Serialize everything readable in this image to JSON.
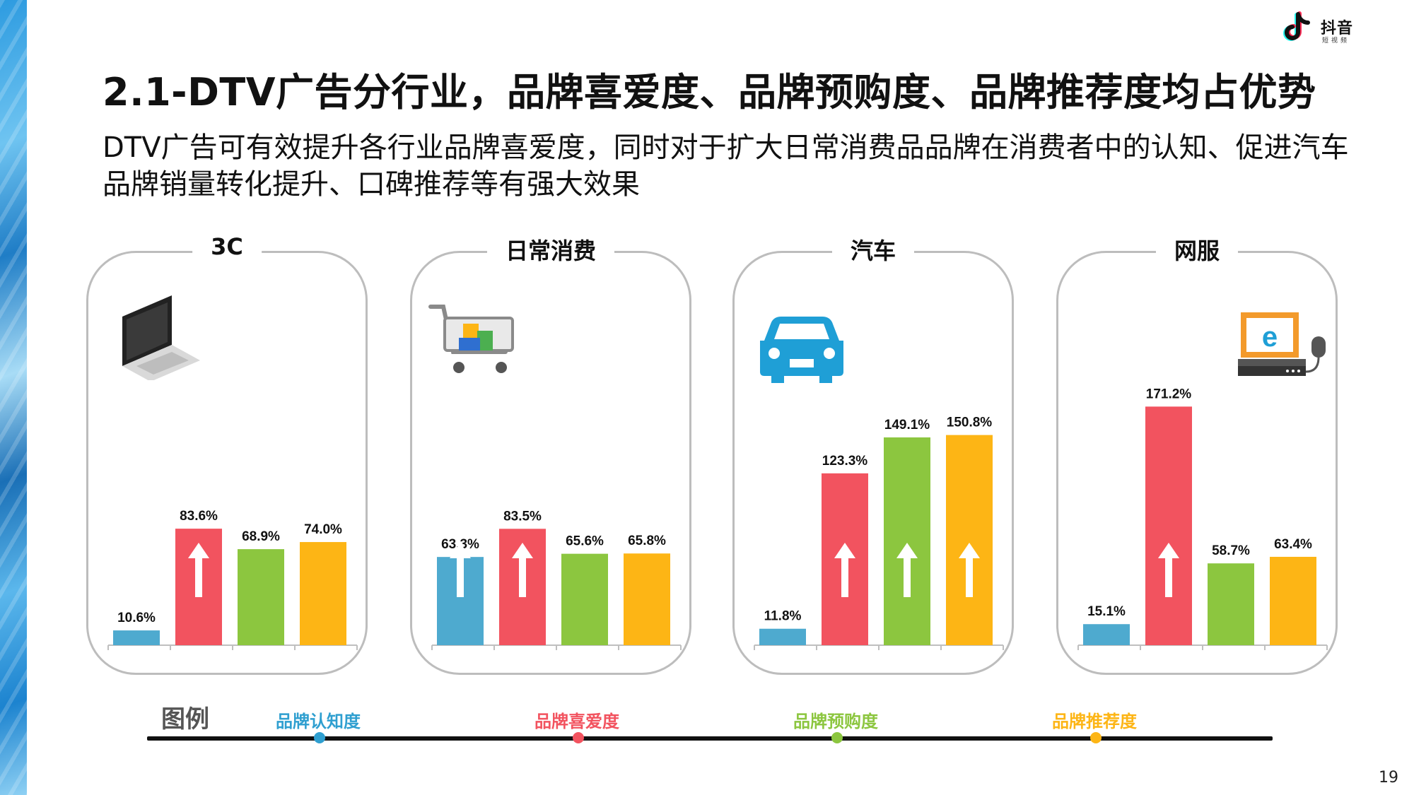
{
  "header": {
    "logo_text": "抖音",
    "logo_sub": "短视频",
    "title": "2.1-DTV广告分行业，品牌喜爱度、品牌预购度、品牌推荐度均占优势",
    "subtitle": "DTV广告可有效提升各行业品牌喜爱度，同时对于扩大日常消费品品牌在消费者中的认知、促进汽车品牌销量转化提升、口碑推荐等有强大效果"
  },
  "colors": {
    "awareness": "#4eaacf",
    "favorability": "#f2535f",
    "purchase_intent": "#8cc63f",
    "recommendation": "#fdb515"
  },
  "chart_data": [
    {
      "type": "bar",
      "title": "3C",
      "icon": "laptop-icon",
      "categories": [
        "品牌认知度",
        "品牌喜爱度",
        "品牌预购度",
        "品牌推荐度"
      ],
      "values": [
        10.6,
        83.6,
        68.9,
        74.0
      ],
      "labels": [
        "10.6%",
        "83.6%",
        "68.9%",
        "74.0%"
      ],
      "arrows": [
        false,
        true,
        false,
        false
      ],
      "ylim": [
        0,
        180
      ]
    },
    {
      "type": "bar",
      "title": "日常消费",
      "icon": "shopping-cart-icon",
      "categories": [
        "品牌认知度",
        "品牌喜爱度",
        "品牌预购度",
        "品牌推荐度"
      ],
      "values": [
        63.3,
        83.5,
        65.6,
        65.8
      ],
      "labels": [
        "63.3%",
        "83.5%",
        "65.6%",
        "65.8%"
      ],
      "arrows": [
        true,
        true,
        false,
        false
      ],
      "ylim": [
        0,
        180
      ]
    },
    {
      "type": "bar",
      "title": "汽车",
      "icon": "car-icon",
      "categories": [
        "品牌认知度",
        "品牌喜爱度",
        "品牌预购度",
        "品牌推荐度"
      ],
      "values": [
        11.8,
        123.3,
        149.1,
        150.8
      ],
      "labels": [
        "11.8%",
        "123.3%",
        "149.1%",
        "150.8%"
      ],
      "arrows": [
        false,
        true,
        true,
        true
      ],
      "ylim": [
        0,
        180
      ]
    },
    {
      "type": "bar",
      "title": "网服",
      "icon": "computer-ie-icon",
      "categories": [
        "品牌认知度",
        "品牌喜爱度",
        "品牌预购度",
        "品牌推荐度"
      ],
      "values": [
        15.1,
        171.2,
        58.7,
        63.4
      ],
      "labels": [
        "15.1%",
        "171.2%",
        "58.7%",
        "63.4%"
      ],
      "arrows": [
        false,
        true,
        false,
        false
      ],
      "ylim": [
        0,
        180
      ]
    }
  ],
  "legend": {
    "title": "图例",
    "items": [
      {
        "label": "品牌认知度",
        "color": "#2f9fd0"
      },
      {
        "label": "品牌喜爱度",
        "color": "#f2535f"
      },
      {
        "label": "品牌预购度",
        "color": "#8cc63f"
      },
      {
        "label": "品牌推荐度",
        "color": "#fdb515"
      }
    ]
  },
  "page_number": "19"
}
